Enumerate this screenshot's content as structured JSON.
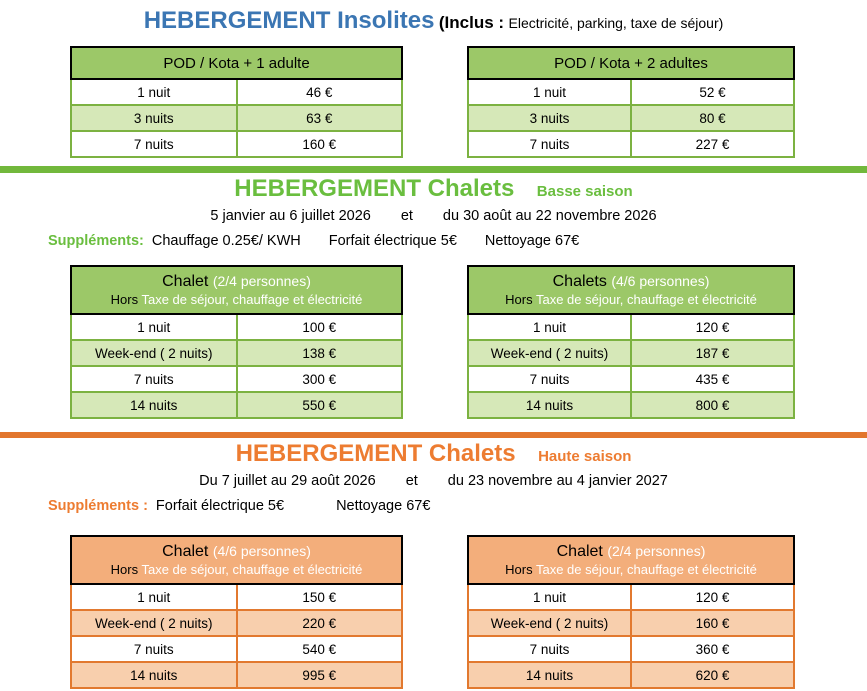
{
  "colors": {
    "title_blue": "#3B76B3",
    "green_text": "#6ABE3F",
    "green_header_bg": "#9CC868",
    "green_row_bg": "#D6E8B8",
    "green_border": "#7CB241",
    "green_divider": "#72B83C",
    "orange_text": "#ED7C31",
    "orange_header_bg": "#F3AE7B",
    "orange_row_bg": "#F8CFAD",
    "orange_border": "#E2792F",
    "orange_divider": "#E2762D"
  },
  "insolites": {
    "title": "HEBERGEMENT Insolites",
    "inclus_label": "(Inclus :",
    "inclus_text": "Electricité, parking, taxe de séjour)",
    "tables": {
      "left": {
        "header": "POD / Kota + 1 adulte",
        "rows": [
          {
            "label": "1 nuit",
            "price": "46 €"
          },
          {
            "label": "3 nuits",
            "price": "63 €"
          },
          {
            "label": "7 nuits",
            "price": "160 €"
          }
        ]
      },
      "right": {
        "header": "POD / Kota + 2 adultes",
        "rows": [
          {
            "label": "1 nuit",
            "price": "52 €"
          },
          {
            "label": "3 nuits",
            "price": "80 €"
          },
          {
            "label": "7 nuits",
            "price": "227 €"
          }
        ]
      }
    }
  },
  "basse": {
    "title": "HEBERGEMENT Chalets",
    "season": "Basse saison",
    "dates": {
      "left": "5 janvier au 6 juillet 2026",
      "mid": "et",
      "right": "du 30 août au 22 novembre 2026"
    },
    "supplements": {
      "label": "Suppléments:",
      "items": [
        "Chauffage 0.25€/ KWH",
        "Forfait électrique 5€",
        "Nettoyage 67€"
      ]
    },
    "tables": {
      "left": {
        "name": "Chalet",
        "capacity": "(2/4 personnes)",
        "hors": "Hors",
        "hors_text": "Taxe de séjour, chauffage et électricité",
        "rows": [
          {
            "label": "1 nuit",
            "price": "100 €"
          },
          {
            "label": "Week-end ( 2 nuits)",
            "price": "138 €"
          },
          {
            "label": "7 nuits",
            "price": "300 €"
          },
          {
            "label": "14 nuits",
            "price": "550 €"
          }
        ]
      },
      "right": {
        "name": "Chalets",
        "capacity": "(4/6 personnes)",
        "hors": "Hors",
        "hors_text": "Taxe de séjour, chauffage et électricité",
        "rows": [
          {
            "label": "1 nuit",
            "price": "120 €"
          },
          {
            "label": "Week-end ( 2 nuits)",
            "price": "187 €"
          },
          {
            "label": "7 nuits",
            "price": "435 €"
          },
          {
            "label": "14 nuits",
            "price": "800 €"
          }
        ]
      }
    }
  },
  "haute": {
    "title": "HEBERGEMENT Chalets",
    "season": "Haute saison",
    "dates": {
      "left": "Du 7 juillet au 29 août 2026",
      "mid": "et",
      "right": "du 23 novembre au 4 janvier 2027"
    },
    "supplements": {
      "label": "Suppléments :",
      "items": [
        "Forfait électrique 5€",
        "Nettoyage 67€"
      ]
    },
    "tables": {
      "left": {
        "name": "Chalet",
        "capacity": "(4/6 personnes)",
        "hors": "Hors",
        "hors_text": "Taxe de séjour, chauffage et électricité",
        "rows": [
          {
            "label": "1 nuit",
            "price": "150 €"
          },
          {
            "label": "Week-end ( 2 nuits)",
            "price": "220 €"
          },
          {
            "label": "7 nuits",
            "price": "540 €"
          },
          {
            "label": "14 nuits",
            "price": "995 €"
          }
        ]
      },
      "right": {
        "name": "Chalet",
        "capacity": "(2/4 personnes)",
        "hors": "Hors",
        "hors_text": "Taxe de séjour, chauffage et électricité",
        "rows": [
          {
            "label": "1 nuit",
            "price": "120 €"
          },
          {
            "label": "Week-end ( 2 nuits)",
            "price": "160 €"
          },
          {
            "label": "7 nuits",
            "price": "360 €"
          },
          {
            "label": "14 nuits",
            "price": "620 €"
          }
        ]
      }
    }
  }
}
